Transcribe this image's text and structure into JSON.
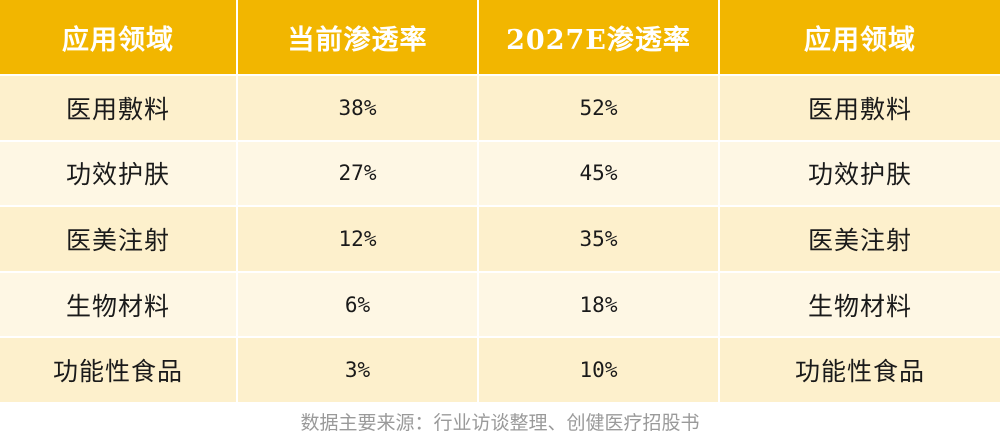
{
  "table": {
    "headers": [
      "应用领域",
      "当前渗透率",
      "2027E渗透率",
      "应用领域"
    ],
    "rows": [
      {
        "area": "医用敷料",
        "current": "38%",
        "forecast": "52%",
        "area_repeat": "医用敷料"
      },
      {
        "area": "功效护肤",
        "current": "27%",
        "forecast": "45%",
        "area_repeat": "功效护肤"
      },
      {
        "area": "医美注射",
        "current": "12%",
        "forecast": "35%",
        "area_repeat": "医美注射"
      },
      {
        "area": "生物材料",
        "current": "6%",
        "forecast": "18%",
        "area_repeat": "生物材料"
      },
      {
        "area": "功能性食品",
        "current": "3%",
        "forecast": "10%",
        "area_repeat": "功能性食品"
      }
    ]
  },
  "footer": {
    "source": "数据主要来源：行业访谈整理、创健医疗招股书"
  },
  "colors": {
    "header_bg": "#f2b600",
    "row_odd_bg": "#fdf0cc",
    "row_even_bg": "#fef7e4",
    "header_text": "#ffffff",
    "source_text": "#9a9a9a"
  }
}
